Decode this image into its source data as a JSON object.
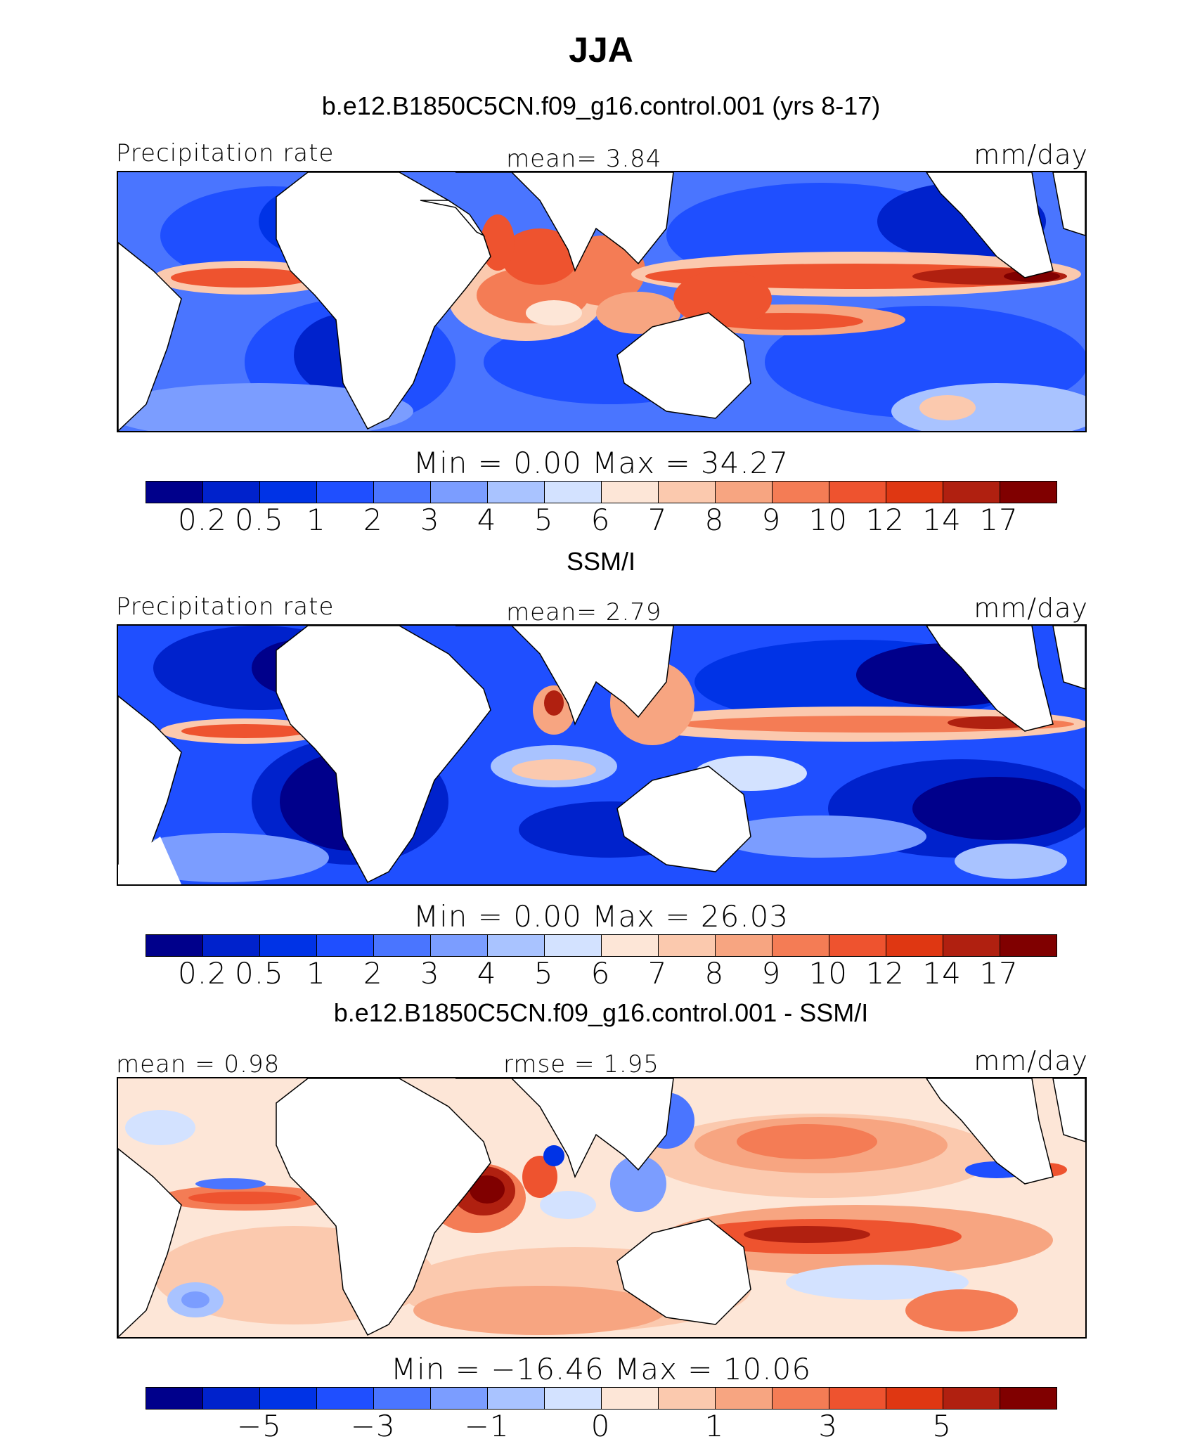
{
  "page": {
    "title": "JJA"
  },
  "palette": {
    "abs": [
      "#00008b",
      "#0022cc",
      "#0033e6",
      "#1f4fff",
      "#4a75ff",
      "#7b9dff",
      "#a9c3ff",
      "#d3e2ff",
      "#fde6d7",
      "#fbc9ae",
      "#f7a581",
      "#f47c55",
      "#ee532f",
      "#df3712",
      "#b02010",
      "#800000"
    ],
    "diff": [
      "#00008b",
      "#0022cc",
      "#0033e6",
      "#1f4fff",
      "#4a75ff",
      "#7b9dff",
      "#a9c3ff",
      "#d3e2ff",
      "#fde6d7",
      "#fbc9ae",
      "#f7a581",
      "#f47c55",
      "#ee532f",
      "#df3712",
      "#b02010",
      "#800000"
    ]
  },
  "panels": [
    {
      "subtitle": "b.e12.B1850C5CN.f09_g16.control.001 (yrs 8-17)",
      "left_label": "Precipitation rate",
      "center_label": "mean=    3.84",
      "right_label": "mm/day",
      "stats": "Min  =     0.00  Max  =   34.27",
      "colorbar_ticks": [
        "0.2",
        "0.5",
        "1",
        "2",
        "3",
        "4",
        "5",
        "6",
        "7",
        "8",
        "9",
        "10",
        "12",
        "14",
        "17"
      ],
      "stats_values": {
        "mean": 3.84,
        "min": 0.0,
        "max": 34.27
      }
    },
    {
      "subtitle": "SSM/I",
      "left_label": "Precipitation rate",
      "center_label": "mean=    2.79",
      "right_label": "mm/day",
      "stats": "Min  =     0.00  Max  =   26.03",
      "colorbar_ticks": [
        "0.2",
        "0.5",
        "1",
        "2",
        "3",
        "4",
        "5",
        "6",
        "7",
        "8",
        "9",
        "10",
        "12",
        "14",
        "17"
      ],
      "stats_values": {
        "mean": 2.79,
        "min": 0.0,
        "max": 26.03
      }
    },
    {
      "subtitle": "b.e12.B1850C5CN.f09_g16.control.001 - SSM/I",
      "left_label": "mean =    0.98",
      "center_label": "rmse =    1.95",
      "right_label": "mm/day",
      "stats": "Min  = −16.46  Max  =   10.06",
      "colorbar_ticks": [
        "−5",
        "−3",
        "−1",
        "0",
        "1",
        "3",
        "5"
      ],
      "stats_values": {
        "mean": 0.98,
        "rmse": 1.95,
        "min": -16.46,
        "max": 10.06
      }
    }
  ],
  "chart_data": [
    {
      "type": "heatmap",
      "title": "b.e12.B1850C5CN.f09_g16.control.001 (yrs 8-17)",
      "variable": "Precipitation rate",
      "units": "mm/day",
      "season": "JJA",
      "mean": 3.84,
      "min": 0.0,
      "max": 34.27,
      "contour_levels": [
        0.2,
        0.5,
        1,
        2,
        3,
        4,
        5,
        6,
        7,
        8,
        9,
        10,
        12,
        14,
        17
      ]
    },
    {
      "type": "heatmap",
      "title": "SSM/I",
      "variable": "Precipitation rate",
      "units": "mm/day",
      "season": "JJA",
      "mean": 2.79,
      "min": 0.0,
      "max": 26.03,
      "contour_levels": [
        0.2,
        0.5,
        1,
        2,
        3,
        4,
        5,
        6,
        7,
        8,
        9,
        10,
        12,
        14,
        17
      ]
    },
    {
      "type": "heatmap",
      "title": "b.e12.B1850C5CN.f09_g16.control.001 - SSM/I",
      "units": "mm/day",
      "season": "JJA",
      "mean": 0.98,
      "rmse": 1.95,
      "min": -16.46,
      "max": 10.06,
      "contour_levels": [
        -5,
        -3,
        -1,
        0,
        1,
        3,
        5
      ]
    }
  ]
}
